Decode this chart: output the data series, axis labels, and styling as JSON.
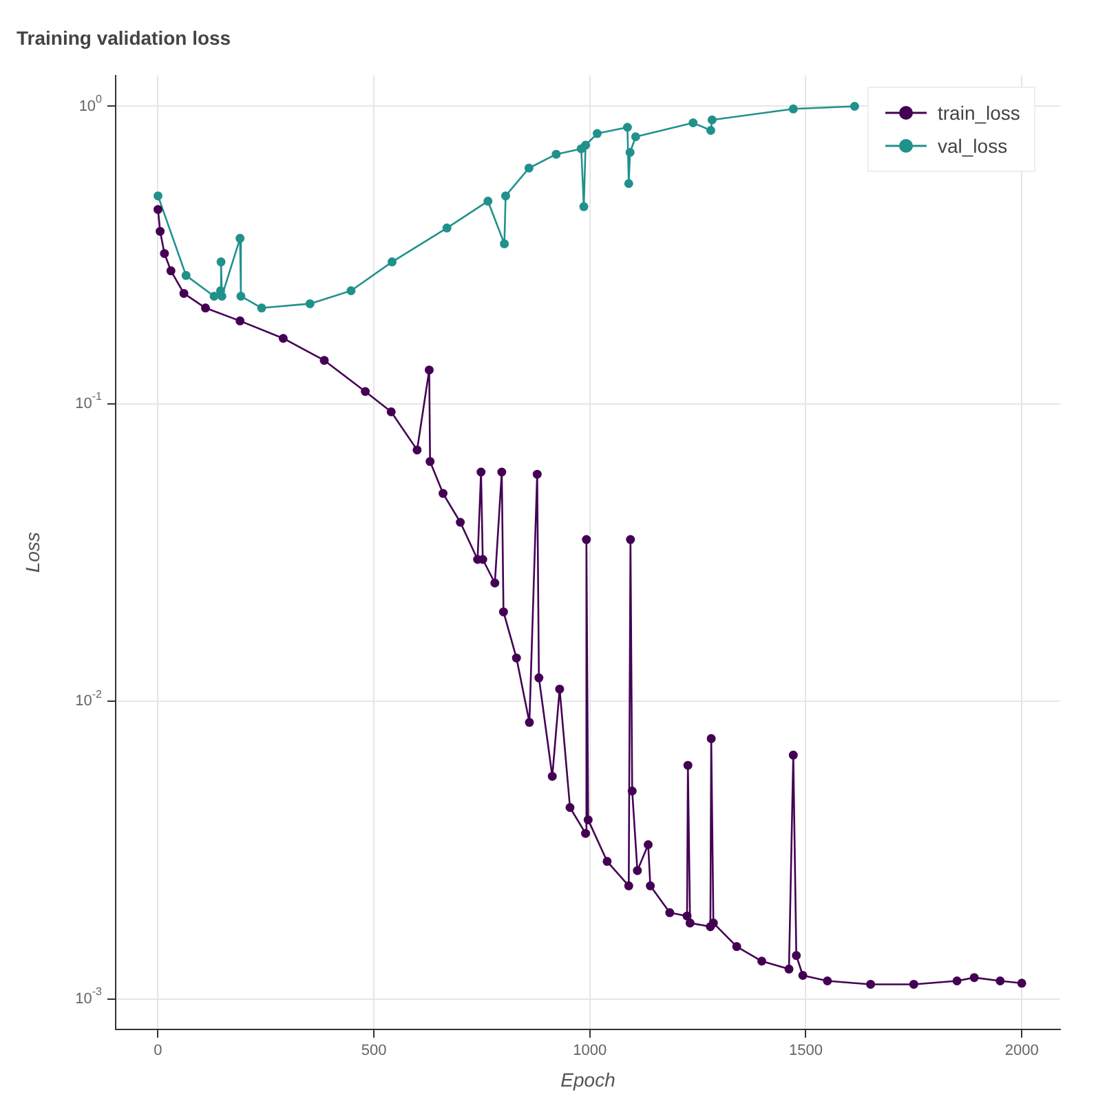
{
  "chart_data": {
    "type": "line",
    "title": "Training validation loss",
    "xlabel": "Epoch",
    "ylabel": "Loss",
    "series": [
      {
        "name": "train_loss",
        "color": "#440154",
        "x": [
          0,
          5,
          15,
          30,
          60,
          110,
          190,
          290,
          385,
          480,
          540,
          600,
          628,
          630,
          660,
          700,
          740,
          748,
          752,
          780,
          796,
          800,
          830,
          860,
          878,
          882,
          913,
          930,
          954,
          990,
          992,
          996,
          1040,
          1090,
          1094,
          1098,
          1110,
          1135,
          1140,
          1185,
          1225,
          1227,
          1232,
          1279,
          1281,
          1286,
          1340,
          1398,
          1461,
          1471,
          1478,
          1493,
          1550,
          1650,
          1750,
          1850,
          1890,
          1950,
          2000
        ],
        "values": [
          0.45,
          0.38,
          0.32,
          0.28,
          0.235,
          0.21,
          0.19,
          0.166,
          0.14,
          0.11,
          0.094,
          0.07,
          0.13,
          0.064,
          0.05,
          0.04,
          0.03,
          0.059,
          0.03,
          0.025,
          0.059,
          0.02,
          0.014,
          0.0085,
          0.058,
          0.012,
          0.0056,
          0.011,
          0.0044,
          0.0036,
          0.035,
          0.004,
          0.0029,
          0.0024,
          0.035,
          0.005,
          0.0027,
          0.0033,
          0.0024,
          0.00195,
          0.0019,
          0.0061,
          0.0018,
          0.00175,
          0.0075,
          0.0018,
          0.0015,
          0.00134,
          0.00126,
          0.0066,
          0.0014,
          0.0012,
          0.00115,
          0.00112,
          0.00112,
          0.00115,
          0.00118,
          0.00115,
          0.00113
        ]
      },
      {
        "name": "val_loss",
        "color": "#21918c",
        "x": [
          0,
          65,
          130,
          145,
          146,
          148,
          190,
          192,
          240,
          352,
          447,
          542,
          669,
          764,
          802,
          805,
          859,
          922,
          980,
          986,
          990,
          1017,
          1087,
          1090,
          1093,
          1106,
          1239,
          1280,
          1283,
          1471,
          1613
        ],
        "values": [
          0.5,
          0.27,
          0.23,
          0.24,
          0.3,
          0.23,
          0.36,
          0.23,
          0.21,
          0.217,
          0.24,
          0.3,
          0.39,
          0.48,
          0.345,
          0.5,
          0.62,
          0.69,
          0.72,
          0.46,
          0.74,
          0.81,
          0.85,
          0.55,
          0.7,
          0.79,
          0.88,
          0.83,
          0.9,
          0.98,
          1.0
        ]
      }
    ],
    "xlim": [
      -98,
      2089
    ],
    "xticks": [
      0,
      500,
      1000,
      1500,
      2000
    ],
    "ylim": [
      0.00079,
      1.27
    ],
    "yticks": [
      {
        "value": 1,
        "label": "10$^{0}$"
      },
      {
        "value": 0.1,
        "label": "10$^{-1}$"
      },
      {
        "value": 0.01,
        "label": "10$^{-2}$"
      },
      {
        "value": 0.001,
        "label": "10$^{-3}$"
      }
    ],
    "log": "y",
    "grid": true,
    "legend": "top right",
    "marker": "circle",
    "line_style": "solid"
  }
}
